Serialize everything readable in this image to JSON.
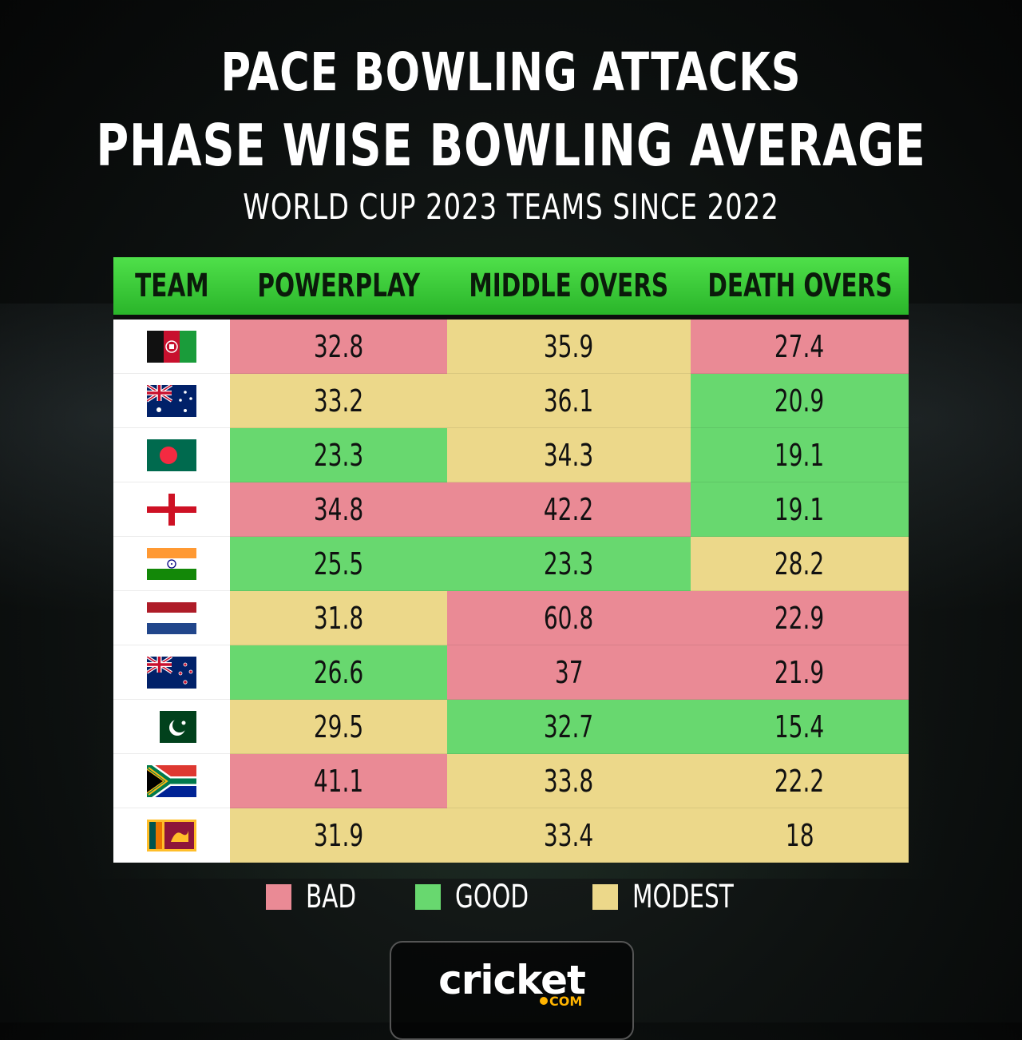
{
  "header": {
    "title_line1": "PACE BOWLING ATTACKS",
    "title_line2": "PHASE WISE BOWLING AVERAGE",
    "subtitle": "WORLD CUP 2023 TEAMS SINCE 2022"
  },
  "chart_data": {
    "type": "table",
    "columns": [
      "TEAM",
      "POWERPLAY",
      "MIDDLE OVERS",
      "DEATH OVERS"
    ],
    "rows": [
      {
        "team_flag": "afghanistan-flag-icon",
        "powerplay": "32.8",
        "middle": "35.9",
        "death": "27.4",
        "ratings": [
          "bad",
          "modest",
          "bad"
        ]
      },
      {
        "team_flag": "australia-flag-icon",
        "powerplay": "33.2",
        "middle": "36.1",
        "death": "20.9",
        "ratings": [
          "modest",
          "modest",
          "good"
        ]
      },
      {
        "team_flag": "bangladesh-flag-icon",
        "powerplay": "23.3",
        "middle": "34.3",
        "death": "19.1",
        "ratings": [
          "good",
          "modest",
          "good"
        ]
      },
      {
        "team_flag": "england-flag-icon",
        "powerplay": "34.8",
        "middle": "42.2",
        "death": "19.1",
        "ratings": [
          "bad",
          "bad",
          "good"
        ]
      },
      {
        "team_flag": "india-flag-icon",
        "powerplay": "25.5",
        "middle": "23.3",
        "death": "28.2",
        "ratings": [
          "good",
          "good",
          "modest"
        ]
      },
      {
        "team_flag": "netherlands-flag-icon",
        "powerplay": "31.8",
        "middle": "60.8",
        "death": "22.9",
        "ratings": [
          "modest",
          "bad",
          "bad"
        ]
      },
      {
        "team_flag": "new-zealand-flag-icon",
        "powerplay": "26.6",
        "middle": "37",
        "death": "21.9",
        "ratings": [
          "good",
          "bad",
          "bad"
        ]
      },
      {
        "team_flag": "pakistan-flag-icon",
        "powerplay": "29.5",
        "middle": "32.7",
        "death": "15.4",
        "ratings": [
          "modest",
          "good",
          "good"
        ]
      },
      {
        "team_flag": "south-africa-flag-icon",
        "powerplay": "41.1",
        "middle": "33.8",
        "death": "22.2",
        "ratings": [
          "bad",
          "modest",
          "modest"
        ]
      },
      {
        "team_flag": "sri-lanka-flag-icon",
        "powerplay": "31.9",
        "middle": "33.4",
        "death": "18",
        "ratings": [
          "modest",
          "modest",
          "modest"
        ]
      }
    ]
  },
  "legend": [
    {
      "label": "BAD",
      "color": "#ea8a95"
    },
    {
      "label": "GOOD",
      "color": "#68d86f"
    },
    {
      "label": "MODEST",
      "color": "#ecd88a"
    }
  ],
  "colors": {
    "bad": "#ea8a95",
    "good": "#68d86f",
    "modest": "#ecd88a",
    "header_green": "#3cc83a"
  },
  "logo": {
    "text": "cricket",
    "suffix": "COM"
  }
}
